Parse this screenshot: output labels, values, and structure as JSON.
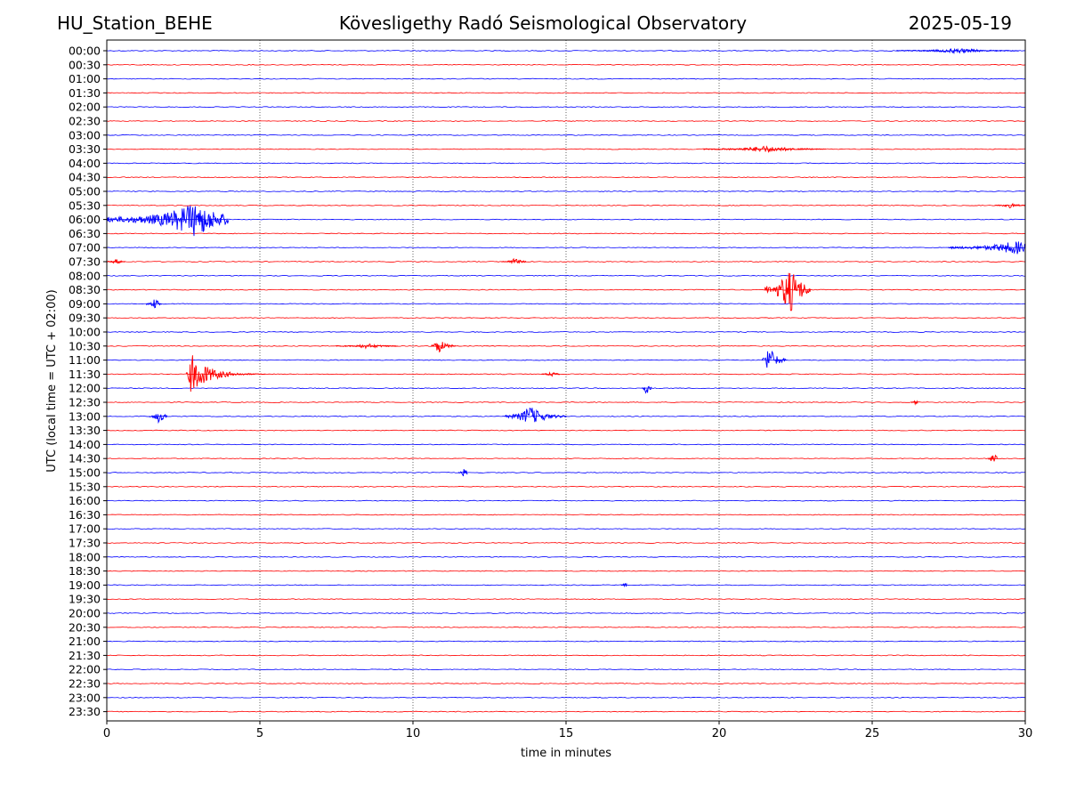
{
  "header": {
    "station": "HU_Station_BEHE",
    "observatory": "Kövesligethy Radó Seismological Observatory",
    "date": "2025-05-19"
  },
  "chart_data": {
    "type": "line",
    "title": "Kövesligethy Radó Seismological Observatory",
    "xlabel": "time in minutes",
    "ylabel": "UTC (local time = UTC + 02:00)",
    "xlim": [
      0,
      30
    ],
    "xticks": [
      0,
      5,
      10,
      15,
      20,
      25,
      30
    ],
    "x_gridlines_dotted": [
      5,
      10,
      15,
      20,
      25
    ],
    "trace_colors": [
      "#0000ff",
      "#ff0000"
    ],
    "rows": [
      "00:00",
      "00:30",
      "01:00",
      "01:30",
      "02:00",
      "02:30",
      "03:00",
      "03:30",
      "04:00",
      "04:30",
      "05:00",
      "05:30",
      "06:00",
      "06:30",
      "07:00",
      "07:30",
      "08:00",
      "08:30",
      "09:00",
      "09:30",
      "10:00",
      "10:30",
      "11:00",
      "11:30",
      "12:00",
      "12:30",
      "13:00",
      "13:30",
      "14:00",
      "14:30",
      "15:00",
      "15:30",
      "16:00",
      "16:30",
      "17:00",
      "17:30",
      "18:00",
      "18:30",
      "19:00",
      "19:30",
      "20:00",
      "20:30",
      "21:00",
      "21:30",
      "22:00",
      "22:30",
      "23:00",
      "23:30"
    ],
    "events": [
      {
        "row": "00:00",
        "start_min": 25.8,
        "end_min": 29.8,
        "amplitude": 0.15
      },
      {
        "row": "03:30",
        "start_min": 19.5,
        "end_min": 23.5,
        "amplitude": 0.2
      },
      {
        "row": "05:30",
        "start_min": 29.0,
        "end_min": 30.0,
        "amplitude": 0.15
      },
      {
        "row": "06:00",
        "start_min": 0.0,
        "end_min": 4.0,
        "peak_min": 2.9,
        "amplitude": 1.0
      },
      {
        "row": "07:00",
        "start_min": 27.5,
        "end_min": 30.0,
        "peak_min": 29.7,
        "amplitude": 0.4
      },
      {
        "row": "07:30",
        "start_min": 0.0,
        "end_min": 0.6,
        "amplitude": 0.15
      },
      {
        "row": "07:30",
        "start_min": 12.9,
        "end_min": 13.7,
        "amplitude": 0.2
      },
      {
        "row": "08:30",
        "start_min": 21.5,
        "end_min": 23.0,
        "peak_min": 22.3,
        "amplitude": 1.4
      },
      {
        "row": "09:00",
        "start_min": 1.3,
        "end_min": 1.8,
        "amplitude": 0.3
      },
      {
        "row": "10:30",
        "start_min": 10.6,
        "end_min": 11.4,
        "peak_min": 10.8,
        "amplitude": 0.5
      },
      {
        "row": "10:30",
        "start_min": 7.5,
        "end_min": 9.5,
        "amplitude": 0.15
      },
      {
        "row": "11:00",
        "start_min": 21.4,
        "end_min": 22.2,
        "peak_min": 21.6,
        "amplitude": 0.9
      },
      {
        "row": "11:30",
        "start_min": 2.6,
        "end_min": 5.2,
        "peak_min": 2.75,
        "amplitude": 1.2
      },
      {
        "row": "11:30",
        "start_min": 14.2,
        "end_min": 14.8,
        "amplitude": 0.15
      },
      {
        "row": "12:00",
        "start_min": 17.5,
        "end_min": 17.8,
        "peak_min": 17.6,
        "amplitude": 0.4
      },
      {
        "row": "12:30",
        "start_min": 26.3,
        "end_min": 26.5,
        "amplitude": 0.15
      },
      {
        "row": "13:00",
        "start_min": 1.4,
        "end_min": 2.0,
        "peak_min": 1.7,
        "amplitude": 0.4
      },
      {
        "row": "13:00",
        "start_min": 13.0,
        "end_min": 15.0,
        "peak_min": 13.8,
        "amplitude": 0.6
      },
      {
        "row": "14:30",
        "start_min": 28.8,
        "end_min": 29.1,
        "peak_min": 28.95,
        "amplitude": 0.5
      },
      {
        "row": "15:00",
        "start_min": 11.5,
        "end_min": 11.8,
        "amplitude": 0.25
      },
      {
        "row": "19:00",
        "start_min": 16.8,
        "end_min": 17.0,
        "amplitude": 0.2
      }
    ]
  }
}
